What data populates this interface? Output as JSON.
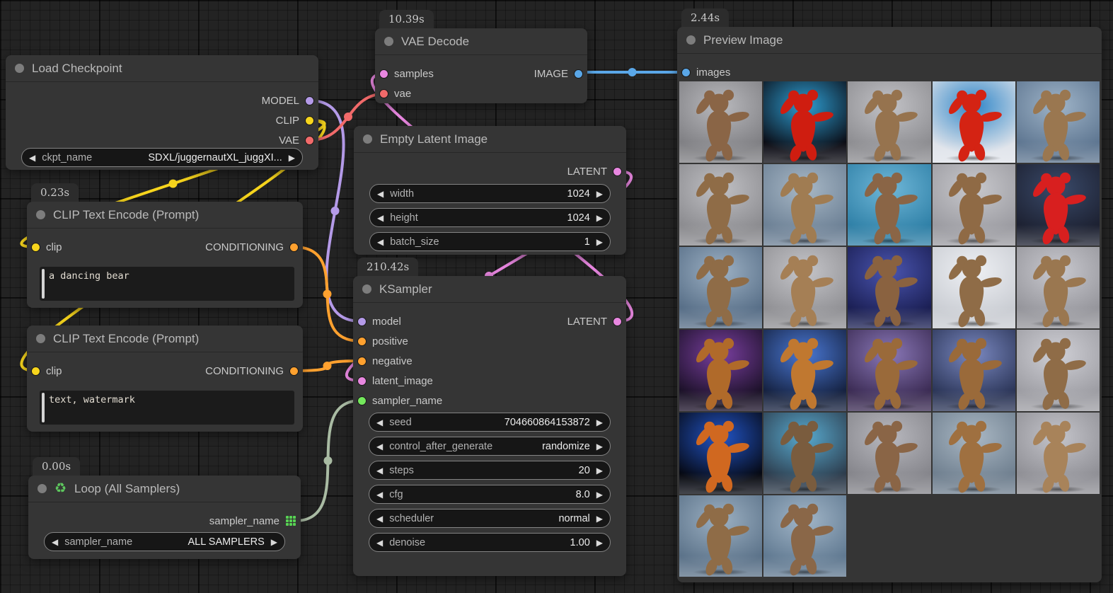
{
  "link_colors": {
    "model": "#b49ae8",
    "clip": "#f7d51d",
    "vae": "#f16a6a",
    "conditioning": "#ffa12f",
    "latent": "#e887e0",
    "image": "#5aa7e8",
    "sage": "#a9bba3"
  },
  "nodes": {
    "load_checkpoint": {
      "title": "Load Checkpoint",
      "outputs": [
        {
          "label": "MODEL",
          "color": "#b49ae8"
        },
        {
          "label": "CLIP",
          "color": "#f7d51d"
        },
        {
          "label": "VAE",
          "color": "#f16a6a"
        }
      ],
      "widgets": [
        {
          "label": "ckpt_name",
          "value": "SDXL/juggernautXL_juggXI..."
        }
      ]
    },
    "vae_decode": {
      "title": "VAE Decode",
      "time": "10.39s",
      "inputs": [
        {
          "label": "samples",
          "color": "#e887e0"
        },
        {
          "label": "vae",
          "color": "#f16a6a"
        }
      ],
      "outputs": [
        {
          "label": "IMAGE",
          "color": "#5aa7e8"
        }
      ]
    },
    "clip_positive": {
      "title": "CLIP Text Encode (Prompt)",
      "time": "0.23s",
      "inputs": [
        {
          "label": "clip",
          "color": "#f7d51d"
        }
      ],
      "outputs": [
        {
          "label": "CONDITIONING",
          "color": "#ffa12f"
        }
      ],
      "text": "a dancing bear"
    },
    "clip_negative": {
      "title": "CLIP Text Encode (Prompt)",
      "inputs": [
        {
          "label": "clip",
          "color": "#f7d51d"
        }
      ],
      "outputs": [
        {
          "label": "CONDITIONING",
          "color": "#ffa12f"
        }
      ],
      "text": "text, watermark"
    },
    "empty_latent": {
      "title": "Empty Latent Image",
      "outputs": [
        {
          "label": "LATENT",
          "color": "#e887e0"
        }
      ],
      "widgets": [
        {
          "label": "width",
          "value": "1024"
        },
        {
          "label": "height",
          "value": "1024"
        },
        {
          "label": "batch_size",
          "value": "1"
        }
      ]
    },
    "ksampler": {
      "title": "KSampler",
      "time": "210.42s",
      "inputs": [
        {
          "label": "model",
          "color": "#b49ae8"
        },
        {
          "label": "positive",
          "color": "#ffa12f"
        },
        {
          "label": "negative",
          "color": "#ffa12f"
        },
        {
          "label": "latent_image",
          "color": "#e887e0"
        },
        {
          "label": "sampler_name",
          "color": "#74e85c"
        }
      ],
      "outputs": [
        {
          "label": "LATENT",
          "color": "#e887e0"
        }
      ],
      "widgets": [
        {
          "label": "seed",
          "value": "704660864153872"
        },
        {
          "label": "control_after_generate",
          "value": "randomize"
        },
        {
          "label": "steps",
          "value": "20"
        },
        {
          "label": "cfg",
          "value": "8.0"
        },
        {
          "label": "scheduler",
          "value": "normal"
        },
        {
          "label": "denoise",
          "value": "1.00"
        }
      ]
    },
    "loop": {
      "title": "Loop (All Samplers)",
      "icon": "♻",
      "time": "0.00s",
      "outputs": [
        {
          "label": "sampler_name",
          "color": "#57d353",
          "grid": true
        }
      ],
      "widgets": [
        {
          "label": "sampler_name",
          "value": "ALL SAMPLERS"
        }
      ]
    },
    "preview_image": {
      "title": "Preview Image",
      "time": "2.44s",
      "inputs": [
        {
          "label": "images",
          "color": "#5aa7e8"
        }
      ]
    }
  },
  "preview_grid": {
    "cells": [
      {
        "b1": "#7e7e82",
        "b2": "#b9b9bd",
        "f": "#8a6546"
      },
      {
        "b1": "#0a0a12",
        "b2": "#2e9fd4",
        "f": "#cf1d10"
      },
      {
        "b1": "#8c8c90",
        "b2": "#c2c2c6",
        "f": "#96734e"
      },
      {
        "b1": "#dfe3ea",
        "b2": "#2f86c8",
        "f": "#d42313"
      },
      {
        "b1": "#5d7590",
        "b2": "#9fb4c8",
        "f": "#9a7750"
      },
      {
        "b1": "#8a8a8e",
        "b2": "#c0c0c4",
        "f": "#8f6c47"
      },
      {
        "b1": "#6b7f94",
        "b2": "#a8b8c6",
        "f": "#a07c52"
      },
      {
        "b1": "#2e7fa6",
        "b2": "#6fb7d8",
        "f": "#8a6546"
      },
      {
        "b1": "#9a9aa0",
        "b2": "#c8c8cc",
        "f": "#8f6a45"
      },
      {
        "b1": "#1c2030",
        "b2": "#3a4a6a",
        "f": "#d81f1f"
      },
      {
        "b1": "#566d86",
        "b2": "#9db1c4",
        "f": "#8f6c47"
      },
      {
        "b1": "#8f8f93",
        "b2": "#c5c5c9",
        "f": "#a57f55"
      },
      {
        "b1": "#1a1e52",
        "b2": "#4a55b0",
        "f": "#8a6240"
      },
      {
        "b1": "#c9ccd2",
        "b2": "#eef0f4",
        "f": "#8f6c47"
      },
      {
        "b1": "#94949a",
        "b2": "#c9c9cf",
        "f": "#9a7750"
      },
      {
        "b1": "#1a1026",
        "b2": "#7a3fa0",
        "f": "#b06a2a"
      },
      {
        "b1": "#14203e",
        "b2": "#4a78d4",
        "f": "#c07830"
      },
      {
        "b1": "#3a2a52",
        "b2": "#8a78b8",
        "f": "#9a6a3a"
      },
      {
        "b1": "#2a3456",
        "b2": "#7a88c0",
        "f": "#9a6a3a"
      },
      {
        "b1": "#9c9ca2",
        "b2": "#cfcfd5",
        "f": "#8f6c47"
      },
      {
        "b1": "#05070f",
        "b2": "#2255c8",
        "f": "#d06820"
      },
      {
        "b1": "#2c3a4a",
        "b2": "#58aacf",
        "f": "#7a5c3e"
      },
      {
        "b1": "#84848a",
        "b2": "#b8b8be",
        "f": "#8a6546"
      },
      {
        "b1": "#6e7e8e",
        "b2": "#aab8c4",
        "f": "#9f7040"
      },
      {
        "b1": "#8e8e94",
        "b2": "#c4c4ca",
        "f": "#a8835a"
      },
      {
        "b1": "#5a7188",
        "b2": "#9cb0c2",
        "f": "#8f6c47"
      },
      {
        "b1": "#5f7890",
        "b2": "#a2b6c8",
        "f": "#8a6748"
      }
    ]
  }
}
